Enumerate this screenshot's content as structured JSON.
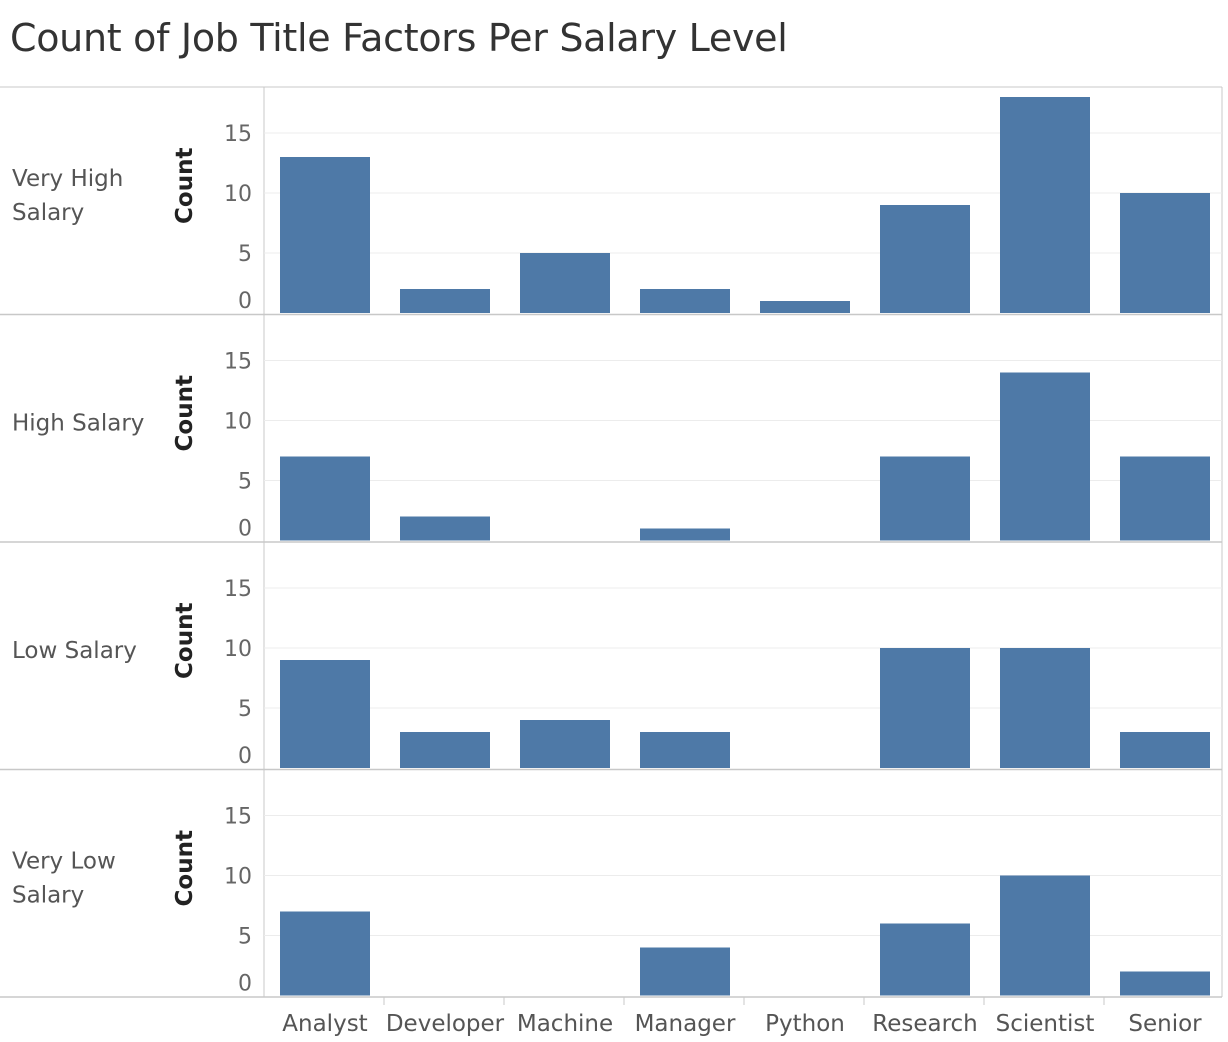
{
  "colors": {
    "bar": "#4e79a7",
    "grid": "#ececec",
    "divider": "#c8c8c8"
  },
  "chart_data": {
    "type": "bar",
    "title": "Count of Job Title Factors Per Salary Level",
    "categories": [
      "Analyst",
      "Developer",
      "Machine",
      "Manager",
      "Python",
      "Research",
      "Scientist",
      "Senior"
    ],
    "ylabel": "Count",
    "ylim": [
      0,
      18
    ],
    "yticks": [
      0,
      5,
      10,
      15
    ],
    "grid": true,
    "panels": [
      {
        "row_label": [
          "Very High",
          "Salary"
        ],
        "values": [
          13,
          2,
          5,
          2,
          1,
          9,
          18,
          10
        ]
      },
      {
        "row_label": [
          "High Salary"
        ],
        "values": [
          7,
          2,
          0,
          1,
          0,
          7,
          14,
          7
        ]
      },
      {
        "row_label": [
          "Low Salary"
        ],
        "values": [
          9,
          3,
          4,
          3,
          0,
          10,
          10,
          3
        ]
      },
      {
        "row_label": [
          "Very Low",
          "Salary"
        ],
        "values": [
          7,
          0,
          0,
          4,
          0,
          6,
          10,
          2
        ]
      }
    ]
  }
}
